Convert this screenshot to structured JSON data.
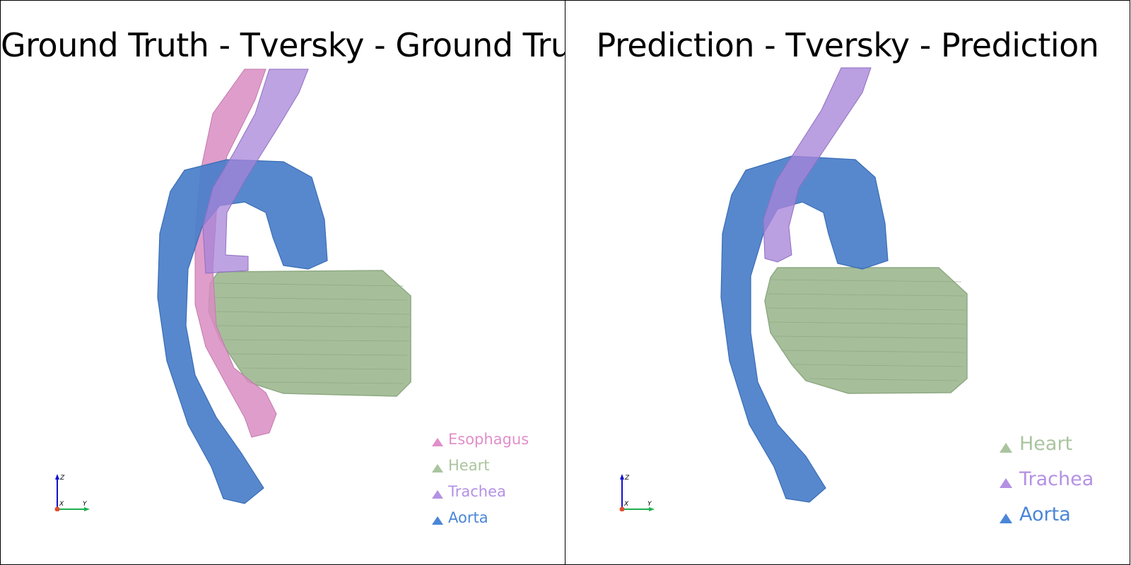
{
  "panels": [
    {
      "title": "Ground Truth - Tversky - Ground Truth",
      "legend": [
        {
          "label": "Esophagus",
          "color": "#e08fcb"
        },
        {
          "label": "Heart",
          "color": "#aac49f"
        },
        {
          "label": "Trachea",
          "color": "#b491e3"
        },
        {
          "label": "Aorta",
          "color": "#4a86d8"
        }
      ]
    },
    {
      "title": "Prediction - Tversky - Prediction",
      "legend": [
        {
          "label": "Heart",
          "color": "#aac49f"
        },
        {
          "label": "Trachea",
          "color": "#b491e3"
        },
        {
          "label": "Aorta",
          "color": "#4a86d8"
        }
      ]
    }
  ],
  "axes_widget": {
    "z": "Z",
    "x": "X",
    "y": "Y"
  },
  "colors": {
    "aorta": "#4a7fc9",
    "heart": "#a6bf9a",
    "trachea": "#a784d8",
    "esophagus": "#d98cc2",
    "axis_z": "#1010d0",
    "axis_y": "#20b050",
    "origin": "#e05030"
  }
}
